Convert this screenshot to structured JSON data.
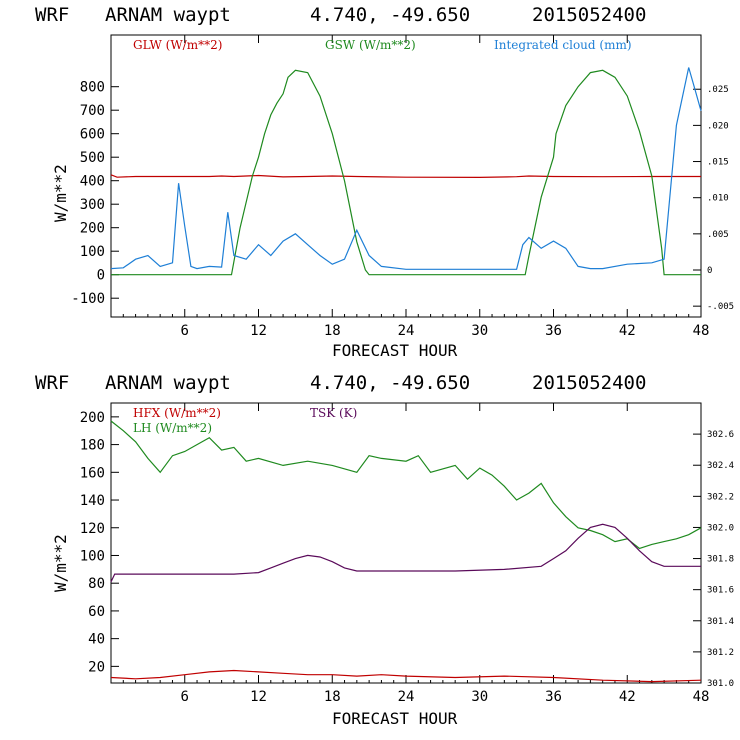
{
  "colors": {
    "red": "#c00000",
    "green": "#1f8a1f",
    "blue": "#1e7fd6",
    "purple": "#5a0a5a",
    "axis": "#000000"
  },
  "chart_data": [
    {
      "type": "line",
      "header": {
        "model": "WRF",
        "site": "ARNAM waypt",
        "coords": "4.740, -49.650",
        "run": "2015052400"
      },
      "xlabel": "FORECAST HOUR",
      "ylabel": "W/m**2",
      "xlim": [
        0,
        48
      ],
      "ylim": [
        -180,
        1020
      ],
      "x_ticks": [
        "6",
        "12",
        "18",
        "24",
        "30",
        "36",
        "42",
        "48"
      ],
      "y_ticks": [
        "-100",
        "0",
        "100",
        "200",
        "300",
        "400",
        "500",
        "600",
        "700",
        "800"
      ],
      "y2lim": [
        -0.0065,
        0.0325
      ],
      "y2_ticks": [
        "-.005",
        "0",
        ".005",
        ".010",
        ".015",
        ".020",
        ".025"
      ],
      "series": [
        {
          "name": "GLW (W/m**2)",
          "color_key": "red",
          "axis": "left",
          "x": [
            0,
            0.5,
            2,
            8,
            9,
            10,
            12,
            14,
            16,
            18,
            20,
            24,
            30,
            33,
            34,
            36,
            40,
            44,
            48
          ],
          "y": [
            425,
            415,
            418,
            418,
            420,
            418,
            422,
            416,
            418,
            420,
            418,
            415,
            414,
            417,
            420,
            418,
            417,
            418,
            418
          ]
        },
        {
          "name": "GSW (W/m**2)",
          "color_key": "green",
          "axis": "left",
          "x": [
            0,
            9.8,
            10.5,
            11.5,
            12,
            12.5,
            13,
            13.5,
            14,
            14.4,
            15,
            16,
            17,
            18,
            19,
            20,
            20.7,
            21,
            22,
            33.7,
            34,
            35,
            36,
            36.2,
            37,
            38,
            39,
            40,
            41,
            42,
            43,
            44,
            44.8,
            45,
            48
          ],
          "y": [
            0,
            0,
            200,
            420,
            500,
            600,
            680,
            730,
            770,
            840,
            870,
            860,
            760,
            600,
            400,
            140,
            20,
            0,
            0,
            0,
            80,
            330,
            500,
            600,
            720,
            800,
            860,
            870,
            840,
            760,
            610,
            420,
            110,
            0,
            0
          ]
        },
        {
          "name": "Integrated cloud (mm)",
          "color_key": "blue",
          "axis": "right",
          "x": [
            0,
            1,
            2,
            3,
            4,
            5,
            5.5,
            6,
            6.5,
            7,
            8,
            9,
            9.5,
            10,
            11,
            12,
            13,
            14,
            15,
            16,
            17,
            18,
            19,
            20,
            21,
            22,
            24,
            28,
            30,
            33,
            33.5,
            34,
            35,
            36,
            37,
            38,
            39,
            40,
            42,
            44,
            45,
            46,
            47,
            47.5,
            48
          ],
          "y": [
            0.0002,
            0.0003,
            0.0015,
            0.002,
            0.0005,
            0.001,
            0.012,
            0.006,
            0.0005,
            0.0002,
            0.0005,
            0.0004,
            0.008,
            0.002,
            0.0015,
            0.0035,
            0.002,
            0.004,
            0.005,
            0.0035,
            0.002,
            0.0008,
            0.0015,
            0.0055,
            0.002,
            0.0005,
            0.0001,
            0.0001,
            0.0001,
            0.0001,
            0.0035,
            0.0045,
            0.003,
            0.004,
            0.003,
            0.0005,
            0.0002,
            0.0002,
            0.0008,
            0.001,
            0.0015,
            0.02,
            0.028,
            0.025,
            0.022
          ]
        }
      ]
    },
    {
      "type": "line",
      "header": {
        "model": "WRF",
        "site": "ARNAM waypt",
        "coords": "4.740, -49.650",
        "run": "2015052400"
      },
      "xlabel": "FORECAST HOUR",
      "ylabel": "W/m**2",
      "xlim": [
        0,
        48
      ],
      "ylim": [
        8,
        210
      ],
      "x_ticks": [
        "6",
        "12",
        "18",
        "24",
        "30",
        "36",
        "42",
        "48"
      ],
      "y_ticks": [
        "20",
        "40",
        "60",
        "80",
        "100",
        "120",
        "140",
        "160",
        "180",
        "200"
      ],
      "y2lim": [
        301.0,
        302.8
      ],
      "y2_ticks": [
        "301.0",
        "301.2",
        "301.4",
        "301.6",
        "301.8",
        "302.0",
        "302.2",
        "302.4",
        "302.6"
      ],
      "series": [
        {
          "name": "HFX (W/m**2)",
          "color_key": "red",
          "axis": "left",
          "x": [
            0,
            2,
            4,
            6,
            8,
            10,
            12,
            14,
            16,
            18,
            20,
            22,
            24,
            28,
            32,
            36,
            40,
            44,
            48
          ],
          "y": [
            12,
            11,
            12,
            14,
            16,
            17,
            16,
            15,
            14,
            14,
            13,
            14,
            13,
            12,
            13,
            12,
            10,
            9,
            10
          ]
        },
        {
          "name": "LH (W/m**2)",
          "color_key": "green",
          "axis": "left",
          "x": [
            0,
            1,
            2,
            3,
            4,
            5,
            6,
            7,
            8,
            9,
            10,
            11,
            12,
            14,
            16,
            18,
            20,
            21,
            22,
            24,
            25,
            26,
            28,
            29,
            30,
            31,
            32,
            33,
            34,
            35,
            36,
            37,
            38,
            39,
            40,
            41,
            42,
            43,
            44,
            45,
            46,
            47,
            48
          ],
          "y": [
            197,
            190,
            182,
            170,
            160,
            172,
            175,
            180,
            185,
            176,
            178,
            168,
            170,
            165,
            168,
            165,
            160,
            172,
            170,
            168,
            172,
            160,
            165,
            155,
            163,
            158,
            150,
            140,
            145,
            152,
            138,
            128,
            120,
            118,
            115,
            110,
            112,
            105,
            108,
            110,
            112,
            115,
            120
          ]
        },
        {
          "name": "TSK (K)",
          "color_key": "purple",
          "axis": "right",
          "x": [
            0,
            0.3,
            2,
            6,
            10,
            12,
            13,
            14,
            15,
            16,
            17,
            18,
            19,
            20,
            22,
            24,
            28,
            32,
            35,
            36,
            37,
            38,
            39,
            40,
            41,
            42,
            43,
            44,
            45,
            46,
            48
          ],
          "y": [
            301.65,
            301.7,
            301.7,
            301.7,
            301.7,
            301.71,
            301.74,
            301.77,
            301.8,
            301.82,
            301.81,
            301.78,
            301.74,
            301.72,
            301.72,
            301.72,
            301.72,
            301.73,
            301.75,
            301.8,
            301.85,
            301.93,
            302.0,
            302.02,
            302.0,
            301.93,
            301.85,
            301.78,
            301.75,
            301.75,
            301.75
          ]
        }
      ]
    }
  ]
}
